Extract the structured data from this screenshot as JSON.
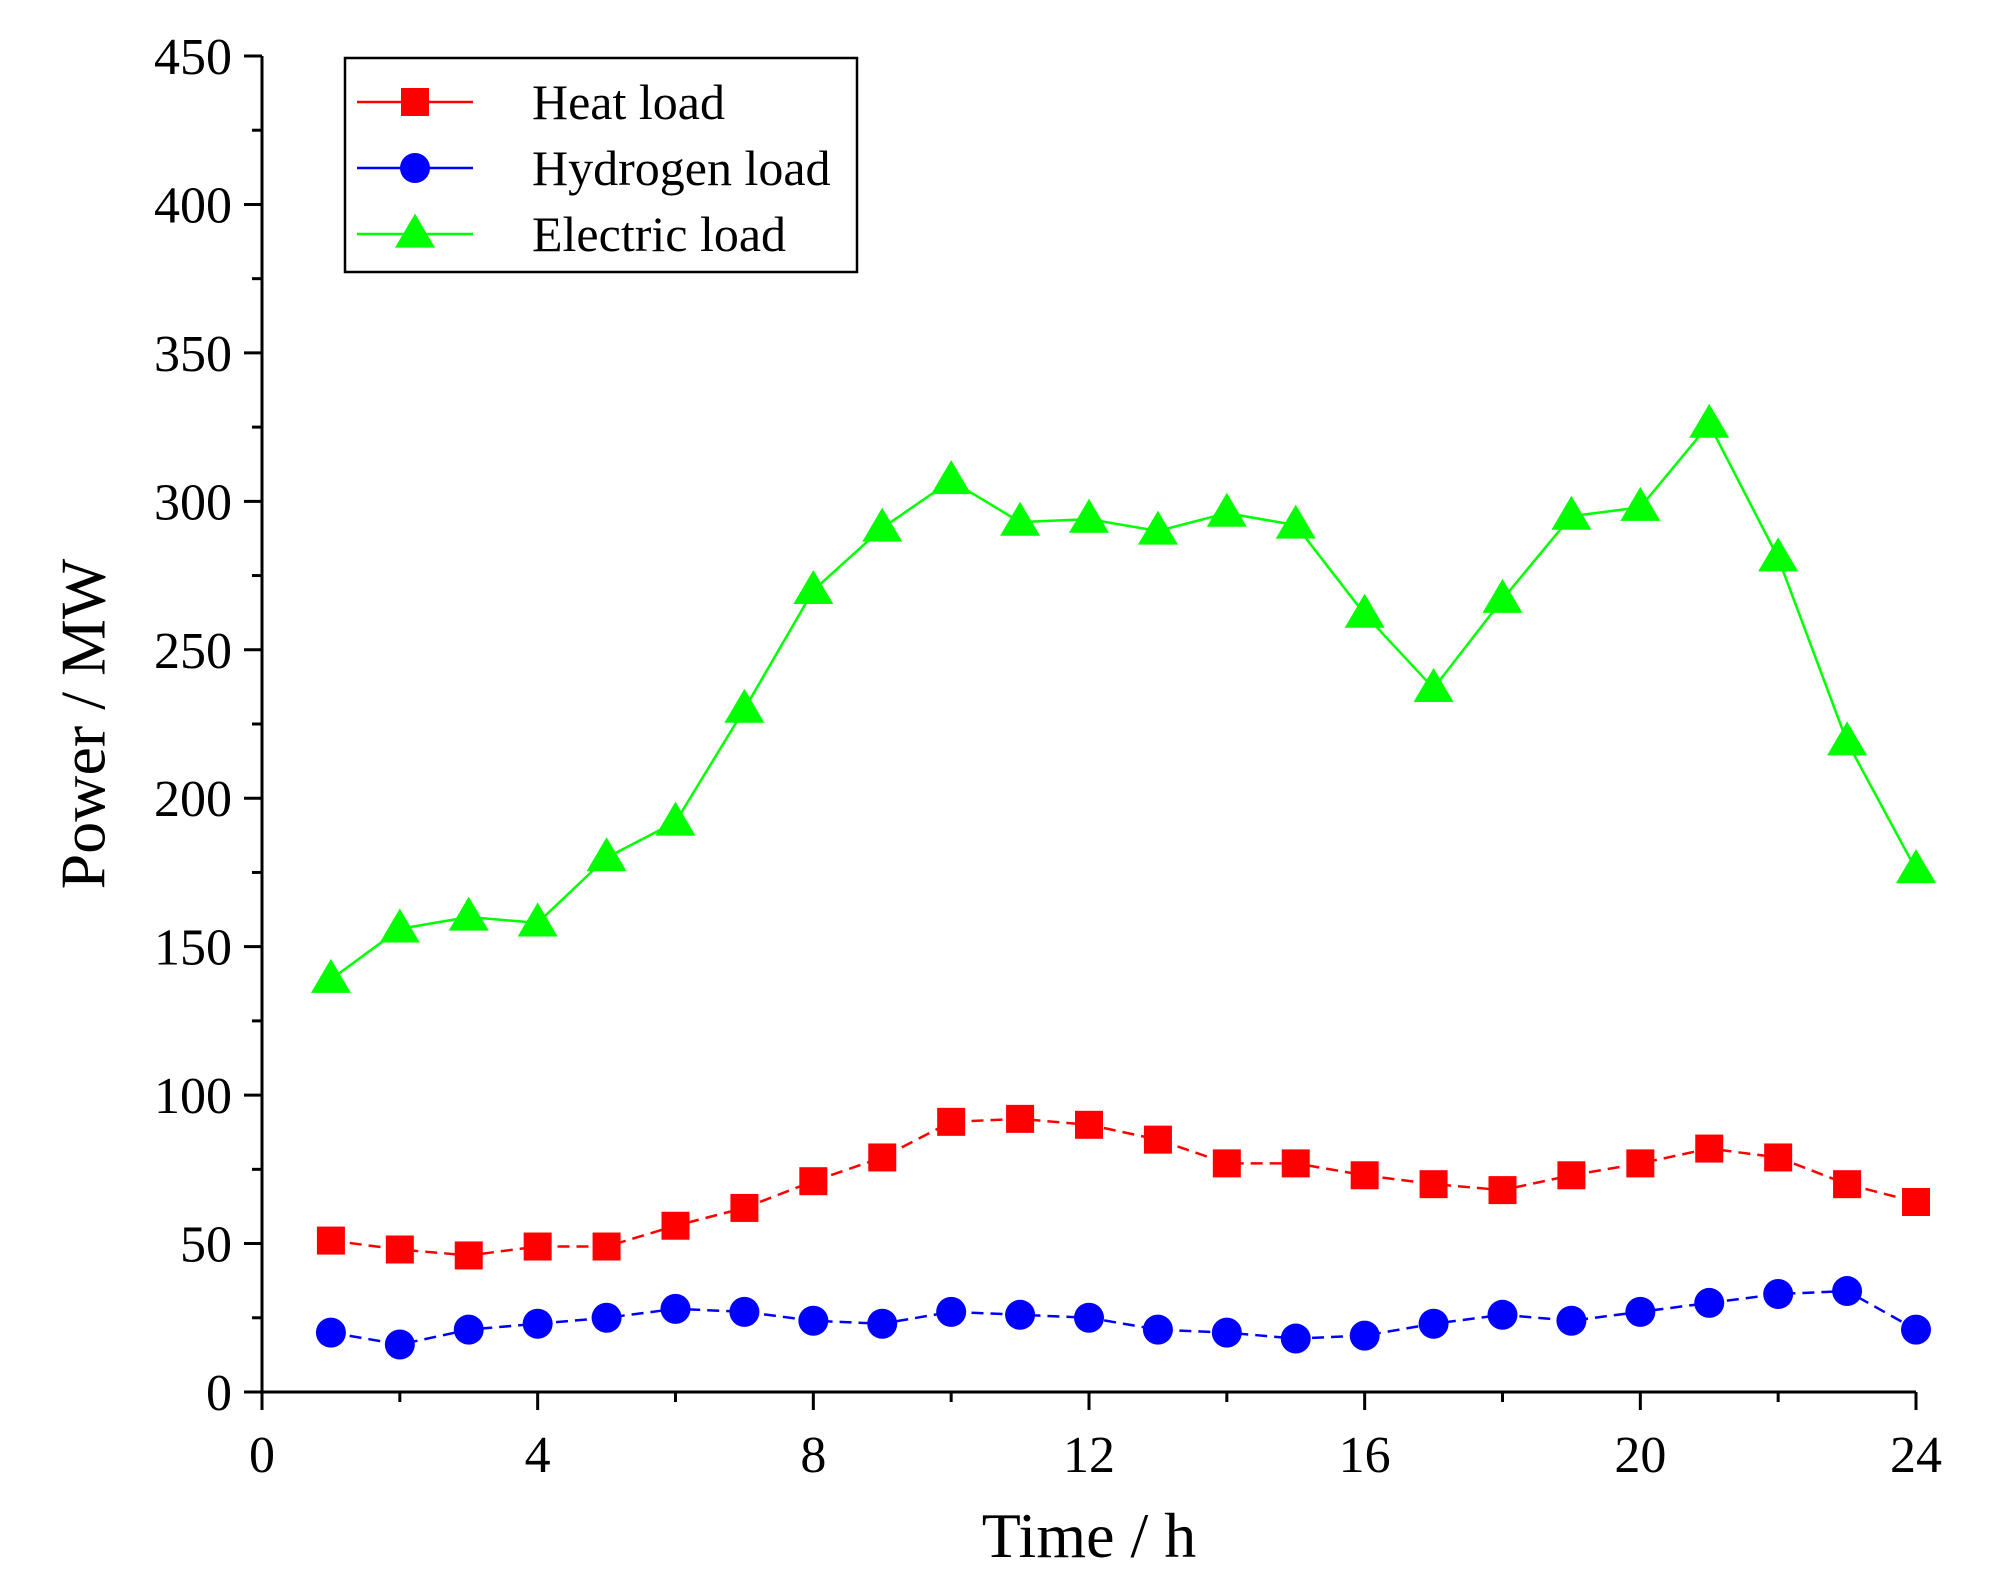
{
  "chart_data": {
    "type": "line",
    "xlabel": "Time / h",
    "ylabel": "Power / MW",
    "xlim": [
      0,
      24
    ],
    "ylim": [
      0,
      450
    ],
    "xticks": [
      0,
      4,
      8,
      12,
      16,
      20,
      24
    ],
    "yticks": [
      0,
      50,
      100,
      150,
      200,
      250,
      300,
      350,
      400,
      450
    ],
    "x_minor_step": 2,
    "y_minor_step": 25,
    "grid": false,
    "legend_position": "top-left",
    "x": [
      1,
      2,
      3,
      4,
      5,
      6,
      7,
      8,
      9,
      10,
      11,
      12,
      13,
      14,
      15,
      16,
      17,
      18,
      19,
      20,
      21,
      22,
      23,
      24
    ],
    "series": [
      {
        "name": "Heat load",
        "color": "#ff0000",
        "marker": "square",
        "line_style": "dashed",
        "values": [
          51,
          48,
          46,
          49,
          49,
          56,
          62,
          71,
          79,
          91,
          92,
          90,
          85,
          77,
          77,
          73,
          70,
          68,
          73,
          77,
          82,
          79,
          70,
          64
        ]
      },
      {
        "name": "Hydrogen load",
        "color": "#0000ff",
        "marker": "circle",
        "line_style": "dashed",
        "values": [
          20,
          16,
          21,
          23,
          25,
          28,
          27,
          24,
          23,
          27,
          26,
          25,
          21,
          20,
          18,
          19,
          23,
          26,
          24,
          27,
          30,
          33,
          34,
          21
        ]
      },
      {
        "name": "Electric load",
        "color": "#00ff00",
        "marker": "triangle",
        "line_style": "solid",
        "values": [
          139,
          156,
          160,
          158,
          180,
          192,
          230,
          270,
          291,
          307,
          293,
          294,
          290,
          296,
          292,
          262,
          237,
          267,
          295,
          298,
          326,
          281,
          219,
          176
        ]
      }
    ]
  }
}
